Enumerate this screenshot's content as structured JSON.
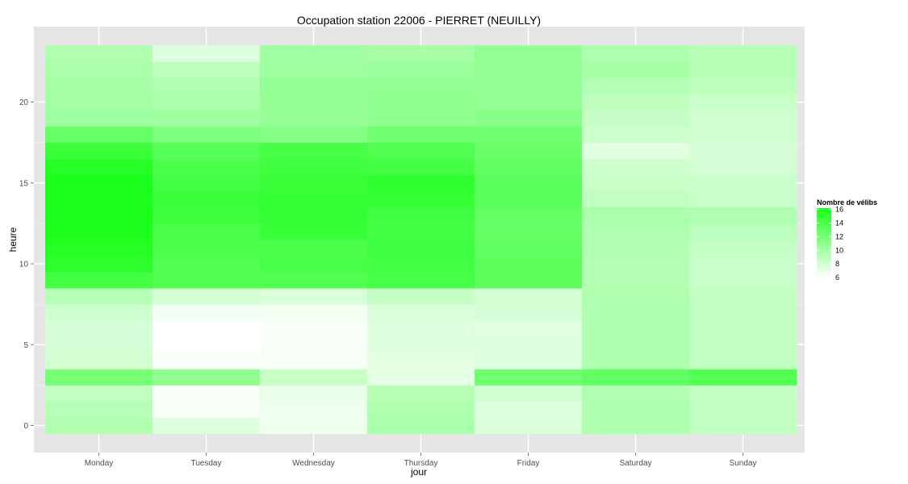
{
  "chart_data": {
    "type": "heatmap",
    "title": "Occupation station 22006 - PIERRET (NEUILLY)",
    "xlabel": "jour",
    "ylabel": "heure",
    "x_categories": [
      "Monday",
      "Tuesday",
      "Wednesday",
      "Thursday",
      "Friday",
      "Saturday",
      "Sunday"
    ],
    "y_range": [
      0,
      23
    ],
    "y_ticks": [
      0,
      5,
      10,
      15,
      20
    ],
    "color_scale": {
      "low": "#ffffff",
      "high": "#1aff1a",
      "min": 6,
      "max": 16.2
    },
    "grid": true,
    "legend": {
      "title": "Nombre de vélibs",
      "ticks": [
        16,
        14,
        12,
        10,
        8,
        6
      ],
      "position": "right"
    },
    "hours": [
      0,
      1,
      2,
      3,
      4,
      5,
      6,
      7,
      8,
      9,
      10,
      11,
      12,
      13,
      14,
      15,
      16,
      17,
      18,
      19,
      20,
      21,
      22,
      23
    ],
    "series": [
      {
        "name": "Monday",
        "values": [
          9.5,
          9.2,
          8.8,
          12.0,
          8.0,
          7.8,
          7.8,
          8.2,
          9.2,
          14.3,
          15.4,
          15.7,
          16.0,
          16.2,
          16.1,
          16.1,
          15.7,
          14.7,
          12.8,
          10.3,
          10.0,
          9.9,
          9.8,
          9.5
        ]
      },
      {
        "name": "Tuesday",
        "values": [
          7.5,
          6.3,
          6.3,
          11.0,
          6.3,
          6.0,
          6.0,
          6.5,
          8.0,
          13.8,
          13.8,
          14.0,
          14.0,
          14.6,
          14.8,
          14.3,
          14.0,
          13.5,
          11.8,
          10.2,
          9.8,
          9.5,
          9.0,
          7.5
        ]
      },
      {
        "name": "Wednesday",
        "values": [
          6.8,
          6.8,
          7.0,
          8.5,
          6.4,
          6.3,
          6.3,
          6.6,
          7.7,
          13.8,
          14.2,
          14.0,
          14.8,
          15.1,
          15.1,
          14.8,
          14.5,
          14.2,
          11.4,
          10.7,
          10.7,
          10.7,
          10.3,
          10.2
        ]
      },
      {
        "name": "Thursday",
        "values": [
          9.8,
          9.6,
          9.2,
          7.2,
          7.2,
          7.5,
          7.5,
          7.6,
          8.6,
          14.2,
          14.4,
          14.5,
          14.3,
          14.5,
          15.1,
          15.3,
          14.3,
          13.8,
          12.3,
          11.0,
          11.0,
          10.9,
          10.5,
          9.9
        ]
      },
      {
        "name": "Friday",
        "values": [
          7.6,
          7.5,
          8.0,
          12.4,
          7.5,
          7.5,
          7.3,
          7.8,
          8.0,
          13.2,
          13.2,
          13.0,
          12.9,
          12.9,
          13.3,
          13.3,
          13.0,
          12.7,
          12.4,
          11.3,
          10.9,
          10.9,
          10.9,
          10.8
        ]
      },
      {
        "name": "Saturday",
        "values": [
          9.6,
          9.6,
          9.5,
          13.0,
          9.6,
          9.6,
          9.6,
          9.6,
          9.6,
          9.4,
          9.4,
          9.5,
          9.5,
          9.8,
          8.8,
          8.5,
          8.2,
          7.4,
          8.3,
          8.6,
          8.9,
          9.3,
          10.0,
          9.6
        ]
      },
      {
        "name": "Sunday",
        "values": [
          8.8,
          8.8,
          8.6,
          13.6,
          8.8,
          8.8,
          8.8,
          8.8,
          8.8,
          8.4,
          8.4,
          8.6,
          9.0,
          9.5,
          8.4,
          8.4,
          7.9,
          7.8,
          8.1,
          8.1,
          8.4,
          8.9,
          9.2,
          9.2
        ]
      }
    ]
  }
}
